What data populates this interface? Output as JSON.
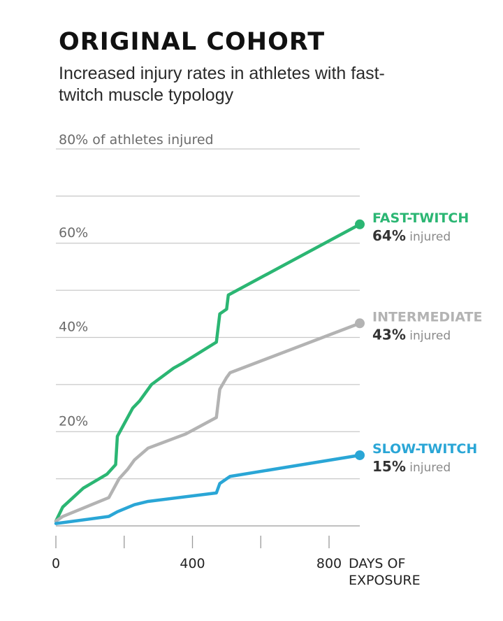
{
  "title": "ORIGINAL COHORT",
  "subtitle": "Increased injury rates in athletes with fast-twitch muscle typology",
  "chart_data": {
    "type": "line",
    "ylabel": "80% of athletes injured",
    "y_tick_labels": [
      "20%",
      "40%",
      "60%"
    ],
    "x_tick_labels": [
      "0",
      "400",
      "800"
    ],
    "xlabel": [
      "DAYS OF",
      "EXPOSURE"
    ],
    "xlim": [
      0,
      890
    ],
    "ylim": [
      0,
      80
    ],
    "grid": true,
    "series": [
      {
        "name": "FAST-TWITCH",
        "final_label": "64%",
        "suffix": "injured",
        "color": "#2bb673",
        "x": [
          0,
          20,
          80,
          150,
          175,
          180,
          225,
          245,
          280,
          345,
          370,
          470,
          480,
          500,
          505,
          890
        ],
        "y": [
          1,
          4,
          8,
          11,
          13,
          19,
          25,
          26.5,
          30,
          33.5,
          34.5,
          39,
          45,
          46,
          49,
          64
        ]
      },
      {
        "name": "INTERMEDIATE",
        "final_label": "43%",
        "suffix": "injured",
        "color": "#b3b3b3",
        "x": [
          0,
          20,
          155,
          185,
          210,
          230,
          270,
          380,
          470,
          480,
          500,
          510,
          890
        ],
        "y": [
          1,
          2,
          6,
          10,
          12,
          14,
          16.5,
          19.5,
          23,
          29,
          31.5,
          32.5,
          43
        ]
      },
      {
        "name": "SLOW-TWITCH",
        "final_label": "15%",
        "suffix": "injured",
        "color": "#2aa6d6",
        "x": [
          0,
          155,
          180,
          230,
          270,
          470,
          480,
          510,
          890
        ],
        "y": [
          0.5,
          2,
          3,
          4.5,
          5.2,
          7,
          9,
          10.5,
          15
        ]
      }
    ]
  }
}
